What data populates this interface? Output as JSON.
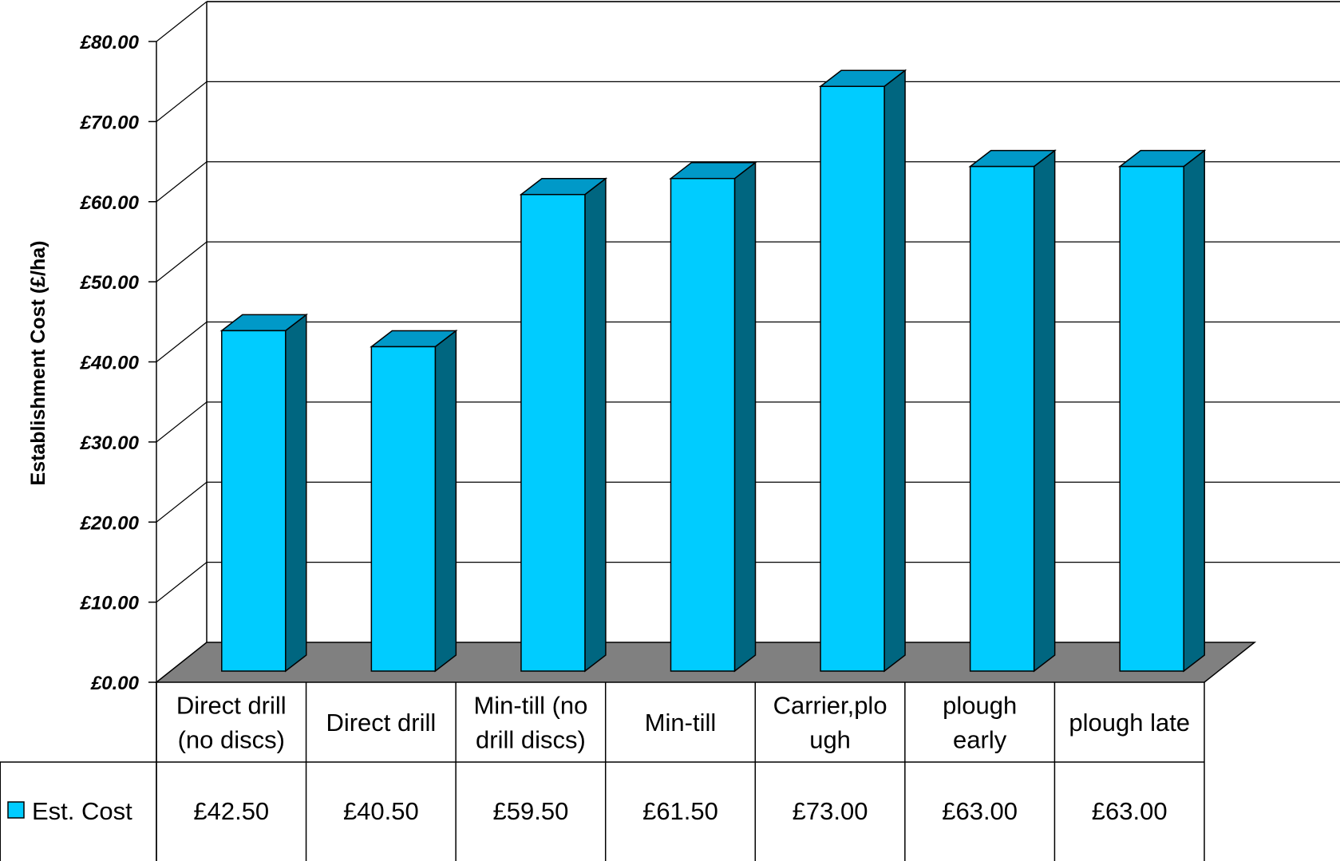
{
  "chart_data": {
    "type": "bar",
    "title": "",
    "xlabel": "",
    "ylabel": "Establishment Cost (£/ha)",
    "ylim": [
      0,
      80
    ],
    "ytick_step": 10,
    "ytick_labels": [
      "£0.00",
      "£10.00",
      "£20.00",
      "£30.00",
      "£40.00",
      "£50.00",
      "£60.00",
      "£70.00",
      "£80.00"
    ],
    "grid": true,
    "three_d": true,
    "legend_placement": "data-table-left",
    "categories": [
      [
        "Direct drill",
        "(no discs)"
      ],
      [
        "Direct drill"
      ],
      [
        "Min-till (no",
        "drill discs)"
      ],
      [
        "Min-till"
      ],
      [
        "Carrier,plo",
        "ugh"
      ],
      [
        "plough",
        "early"
      ],
      [
        "plough late"
      ]
    ],
    "series": [
      {
        "name": "Est. Cost",
        "values": [
          42.5,
          40.5,
          59.5,
          61.5,
          73.0,
          63.0,
          63.0
        ],
        "value_labels": [
          "£42.50",
          "£40.50",
          "£59.50",
          "£61.50",
          "£73.00",
          "£63.00",
          "£63.00"
        ]
      }
    ],
    "colors": {
      "bar_front": "#00CCFF",
      "bar_top": "#0099C8",
      "bar_side": "#006680",
      "floor": "#808080",
      "legend_swatch": "#00CCFF"
    }
  }
}
